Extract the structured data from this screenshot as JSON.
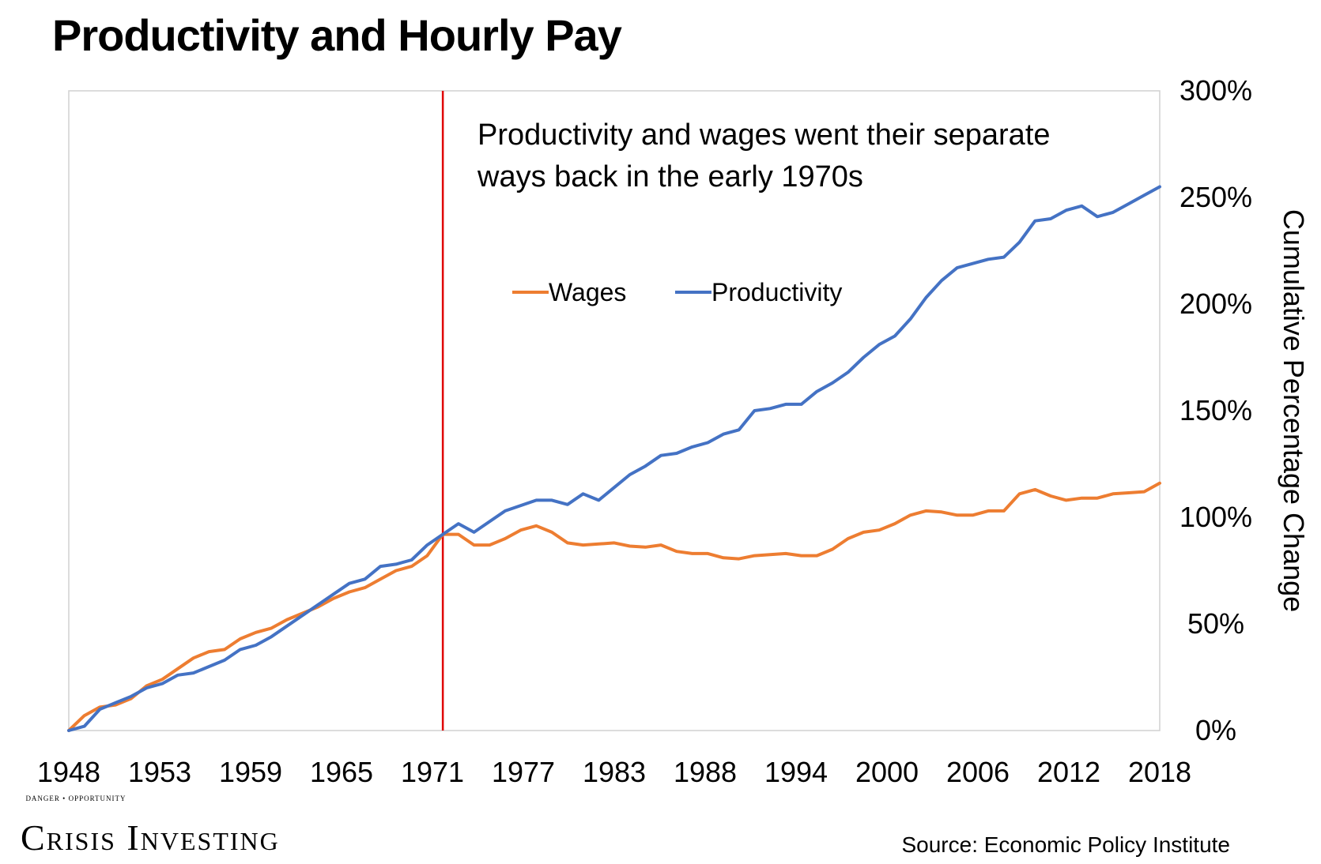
{
  "chart_data": {
    "type": "line",
    "title": "Productivity and Hourly Pay",
    "annotation": [
      "Productivity and wages went their separate",
      "ways back in the early 1970s"
    ],
    "ylabel": "Cumulative Percentage Change",
    "xlabel": "",
    "x_tick_labels": [
      "1948",
      "1953",
      "1959",
      "1965",
      "1971",
      "1977",
      "1983",
      "1988",
      "1994",
      "2000",
      "2006",
      "2012",
      "2018"
    ],
    "y_tick_labels": [
      "0%",
      "50%",
      "100%",
      "150%",
      "200%",
      "250%",
      "300%"
    ],
    "xlim": [
      1948,
      2018
    ],
    "ylim": [
      0,
      300
    ],
    "y_unit": "%",
    "y_axis_side": "right",
    "legend_position": "top-center",
    "grid": false,
    "vertical_marker": {
      "x": 1972,
      "color": "#e00000"
    },
    "x": [
      1948,
      1949,
      1950,
      1951,
      1952,
      1953,
      1954,
      1955,
      1956,
      1957,
      1958,
      1959,
      1960,
      1961,
      1962,
      1963,
      1964,
      1965,
      1966,
      1967,
      1968,
      1969,
      1970,
      1971,
      1972,
      1973,
      1974,
      1975,
      1976,
      1977,
      1978,
      1979,
      1980,
      1981,
      1982,
      1983,
      1984,
      1985,
      1986,
      1987,
      1988,
      1989,
      1990,
      1991,
      1992,
      1993,
      1994,
      1995,
      1996,
      1997,
      1998,
      1999,
      2000,
      2001,
      2002,
      2003,
      2004,
      2005,
      2006,
      2007,
      2008,
      2009,
      2010,
      2011,
      2012,
      2013,
      2014,
      2015,
      2016,
      2017,
      2018
    ],
    "series": [
      {
        "name": "Wages",
        "color": "#ed7d31",
        "values": [
          0,
          7,
          11,
          12,
          15,
          21,
          24,
          29,
          34,
          37,
          38,
          43,
          46,
          48,
          52,
          55,
          58,
          62,
          65,
          67,
          71,
          75,
          77,
          82,
          92,
          92,
          87,
          87,
          90,
          94,
          96,
          93,
          88,
          87,
          87.5,
          88,
          86.5,
          86,
          87,
          84,
          83,
          83,
          81,
          80.5,
          82,
          82.5,
          83,
          82,
          82,
          85,
          90,
          93,
          94,
          97,
          101,
          103,
          102.5,
          101,
          101,
          103,
          103,
          111,
          113,
          110,
          108,
          109,
          109,
          111,
          111.5,
          112,
          116
        ]
      },
      {
        "name": "Productivity",
        "color": "#4472c4",
        "values": [
          0,
          2,
          10,
          13,
          16,
          20,
          22,
          26,
          27,
          30,
          33,
          38,
          40,
          44,
          49,
          54,
          59,
          64,
          69,
          71,
          77,
          78,
          80,
          87,
          92,
          97,
          93,
          98,
          103,
          105.5,
          108,
          108,
          106,
          111,
          108,
          114,
          120,
          124,
          129,
          130,
          133,
          135,
          139,
          141,
          150,
          151,
          153,
          153,
          159,
          163,
          168,
          175,
          181,
          185,
          193,
          203,
          211,
          217,
          219,
          221,
          222,
          229,
          239,
          240,
          244,
          246,
          241,
          243,
          247,
          251,
          255
        ]
      }
    ]
  },
  "branding": {
    "tagline": "DANGER • OPPORTUNITY",
    "logo_name": "Crisis Investing"
  },
  "source_note": "Source: Economic Policy Institute"
}
